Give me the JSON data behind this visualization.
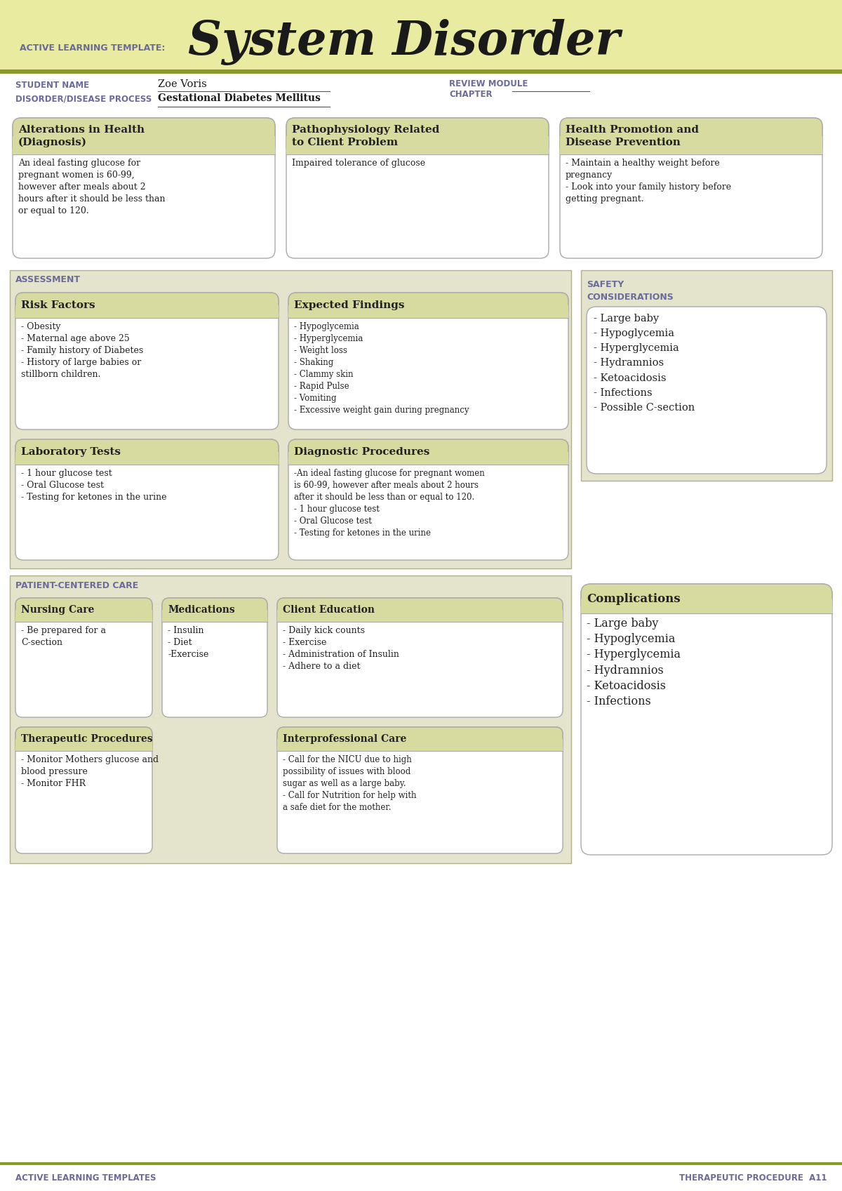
{
  "white": "#ffffff",
  "cream_header": "#e8eba0",
  "olive_line": "#8a9a2a",
  "purple_text": "#6b6b9b",
  "dark_text": "#222222",
  "box_title_bg": "#d8dba0",
  "box_white_bg": "#ffffff",
  "section_bg": "#e4e4cc",
  "box_edge": "#aaaaaa",
  "title_text": "System Disorder",
  "template_label": "ACTIVE LEARNING TEMPLATE:",
  "student_name_label": "STUDENT NAME",
  "student_name": "Zoe Voris",
  "disorder_label": "DISORDER/DISEASE PROCESS",
  "disorder_name": "Gestational Diabetes Mellitus",
  "review_module_label": "REVIEW MODULE",
  "review_module_label2": "CHAPTER",
  "box1_title": "Alterations in Health\n(Diagnosis)",
  "box1_body": "An ideal fasting glucose for\npregnant women is 60-99,\nhowever after meals about 2\nhours after it should be less than\nor equal to 120.",
  "box2_title": "Pathophysiology Related\nto Client Problem",
  "box2_body": "Impaired tolerance of glucose",
  "box3_title": "Health Promotion and\nDisease Prevention",
  "box3_body": "- Maintain a healthy weight before\npregnancy\n- Look into your family history before\ngetting pregnant.",
  "assessment_label": "ASSESSMENT",
  "safety_label": "SAFETY\nCONSIDERATIONS",
  "risk_title": "Risk Factors",
  "risk_body": "- Obesity\n- Maternal age above 25\n- Family history of Diabetes\n- History of large babies or\nstillborn children.",
  "expected_title": "Expected Findings",
  "expected_body": "- Hypoglycemia\n- Hyperglycemia\n- Weight loss\n- Shaking\n- Clammy skin\n- Rapid Pulse\n- Vomiting\n- Excessive weight gain during pregnancy",
  "safety_body": "- Large baby\n- Hypoglycemia\n- Hyperglycemia\n- Hydramnios\n- Ketoacidosis\n- Infections\n- Possible C-section",
  "lab_title": "Laboratory Tests",
  "lab_body": "- 1 hour glucose test\n- Oral Glucose test\n- Testing for ketones in the urine",
  "diag_title": "Diagnostic Procedures",
  "diag_body": "-An ideal fasting glucose for pregnant women\nis 60-99, however after meals about 2 hours\nafter it should be less than or equal to 120.\n- 1 hour glucose test\n- Oral Glucose test\n- Testing for ketones in the urine",
  "patient_care_label": "PATIENT-CENTERED CARE",
  "complications_title": "Complications",
  "complications_body": "- Large baby\n- Hypoglycemia\n- Hyperglycemia\n- Hydramnios\n- Ketoacidosis\n- Infections",
  "nursing_title": "Nursing Care",
  "nursing_body": "- Be prepared for a\nC-section",
  "meds_title": "Medications",
  "meds_body": "- Insulin\n- Diet\n-Exercise",
  "client_title": "Client Education",
  "client_body": "- Daily kick counts\n- Exercise\n- Administration of Insulin\n- Adhere to a diet",
  "therapeutic_title": "Therapeutic Procedures",
  "therapeutic_body": "- Monitor Mothers glucose and\nblood pressure\n- Monitor FHR",
  "interpro_title": "Interprofessional Care",
  "interpro_body": "- Call for the NICU due to high\npossibility of issues with blood\nsugar as well as a large baby.\n- Call for Nutrition for help with\na safe diet for the mother.",
  "footer_left": "ACTIVE LEARNING TEMPLATES",
  "footer_right": "THERAPEUTIC PROCEDURE  A11"
}
